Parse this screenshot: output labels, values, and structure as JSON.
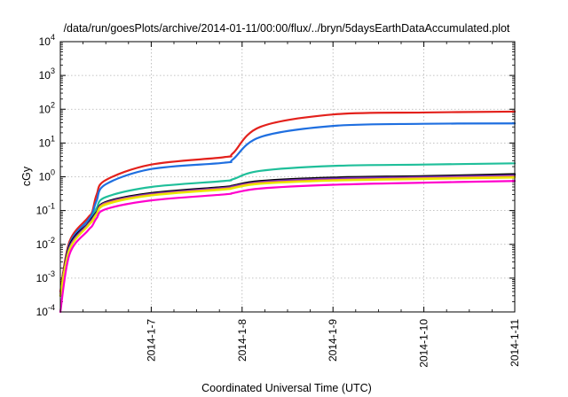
{
  "chart_data": {
    "type": "line",
    "title": "/data/run/goesPlots/archive/2014-01-11/00:00/flux/../bryn/5daysEarthDataAccumulated.plot",
    "xlabel": "Coordinated Universal Time (UTC)",
    "ylabel": "cGy",
    "x_ticks": [
      "2014-1-7",
      "2014-1-8",
      "2014-1-9",
      "2014-1-10",
      "2014-1-11"
    ],
    "xlim": [
      "2014-01-06",
      "2014-01-11"
    ],
    "y_scale": "log",
    "ylim": [
      0.0001,
      10000
    ],
    "y_ticks": [
      {
        "base": "10",
        "exp": "-4"
      },
      {
        "base": "10",
        "exp": "-3"
      },
      {
        "base": "10",
        "exp": "-2"
      },
      {
        "base": "10",
        "exp": "-1"
      },
      {
        "base": "10",
        "exp": "0"
      },
      {
        "base": "10",
        "exp": "1"
      },
      {
        "base": "10",
        "exp": "2"
      },
      {
        "base": "10",
        "exp": "3"
      },
      {
        "base": "10",
        "exp": "4"
      }
    ],
    "grid": true,
    "series": [
      {
        "color": "#e3211c",
        "x": [
          "2014-01-06 00:00",
          "2014-01-06 02:24",
          "2014-01-06 07:12",
          "2014-01-06 08:24",
          "2014-01-06 09:36",
          "2014-01-06 12:00",
          "2014-01-07 00:00",
          "2014-01-07 19:12",
          "2014-01-07 21:36",
          "2014-01-08 04:48",
          "2014-01-09 00:00",
          "2014-01-10 00:00",
          "2014-01-11 00:00"
        ],
        "y": [
          0.0004,
          0.012,
          0.06,
          0.09,
          0.3,
          0.8,
          2.3,
          3.8,
          5,
          30,
          70,
          80,
          85
        ]
      },
      {
        "color": "#1f6fe0",
        "x": [
          "2014-01-06 00:00",
          "2014-01-06 02:24",
          "2014-01-06 07:12",
          "2014-01-06 08:24",
          "2014-01-06 09:36",
          "2014-01-06 12:00",
          "2014-01-07 00:00",
          "2014-01-07 19:12",
          "2014-01-07 21:36",
          "2014-01-08 04:48",
          "2014-01-09 00:00",
          "2014-01-10 00:00",
          "2014-01-11 00:00"
        ],
        "y": [
          0.0003,
          0.01,
          0.05,
          0.08,
          0.2,
          0.6,
          1.7,
          2.6,
          3.3,
          15,
          32,
          37,
          38
        ]
      },
      {
        "color": "#1fbf9a",
        "x": [
          "2014-01-06 00:00",
          "2014-01-06 02:24",
          "2014-01-06 07:12",
          "2014-01-06 08:24",
          "2014-01-06 09:36",
          "2014-01-06 12:00",
          "2014-01-07 00:00",
          "2014-01-07 19:12",
          "2014-01-07 21:36",
          "2014-01-08 04:48",
          "2014-01-09 00:00",
          "2014-01-10 00:00",
          "2014-01-11 00:00"
        ],
        "y": [
          0.0003,
          0.008,
          0.04,
          0.06,
          0.12,
          0.25,
          0.5,
          0.75,
          0.85,
          1.5,
          2.1,
          2.3,
          2.5
        ]
      },
      {
        "color": "#000000",
        "x": [
          "2014-01-06 00:00",
          "2014-01-06 02:24",
          "2014-01-06 07:12",
          "2014-01-06 08:24",
          "2014-01-06 09:36",
          "2014-01-06 12:00",
          "2014-01-07 00:00",
          "2014-01-07 19:12",
          "2014-01-07 21:36",
          "2014-01-08 04:48",
          "2014-01-09 00:00",
          "2014-01-10 00:00",
          "2014-01-11 00:00"
        ],
        "y": [
          0.0003,
          0.009,
          0.04,
          0.06,
          0.09,
          0.18,
          0.33,
          0.5,
          0.55,
          0.75,
          0.95,
          1.05,
          1.2
        ]
      },
      {
        "color": "#7b2fbf",
        "x": [
          "2014-01-06 00:00",
          "2014-01-06 02:24",
          "2014-01-06 07:12",
          "2014-01-06 08:24",
          "2014-01-06 09:36",
          "2014-01-06 12:00",
          "2014-01-07 00:00",
          "2014-01-07 19:12",
          "2014-01-07 21:36",
          "2014-01-08 04:48",
          "2014-01-09 00:00",
          "2014-01-10 00:00",
          "2014-01-11 00:00"
        ],
        "y": [
          0.0003,
          0.008,
          0.038,
          0.055,
          0.085,
          0.17,
          0.31,
          0.47,
          0.52,
          0.7,
          0.88,
          0.98,
          1.1
        ]
      },
      {
        "color": "#ff9a1f",
        "x": [
          "2014-01-06 00:00",
          "2014-01-06 02:24",
          "2014-01-06 07:12",
          "2014-01-06 08:24",
          "2014-01-06 09:36",
          "2014-01-06 12:00",
          "2014-01-07 00:00",
          "2014-01-07 19:12",
          "2014-01-07 21:36",
          "2014-01-08 04:48",
          "2014-01-09 00:00",
          "2014-01-10 00:00",
          "2014-01-11 00:00"
        ],
        "y": [
          0.0003,
          0.007,
          0.035,
          0.05,
          0.08,
          0.16,
          0.29,
          0.44,
          0.48,
          0.65,
          0.8,
          0.9,
          1.0
        ]
      },
      {
        "color": "#e8e800",
        "x": [
          "2014-01-06 00:00",
          "2014-01-06 02:24",
          "2014-01-06 07:12",
          "2014-01-06 08:24",
          "2014-01-06 09:36",
          "2014-01-06 12:00",
          "2014-01-07 00:00",
          "2014-01-07 19:12",
          "2014-01-07 21:36",
          "2014-01-08 04:48",
          "2014-01-09 00:00",
          "2014-01-10 00:00",
          "2014-01-11 00:00"
        ],
        "y": [
          0.0003,
          0.007,
          0.034,
          0.048,
          0.078,
          0.15,
          0.28,
          0.42,
          0.46,
          0.62,
          0.77,
          0.86,
          0.95
        ]
      },
      {
        "color": "#ff00cc",
        "x": [
          "2014-01-06 00:00",
          "2014-01-06 02:24",
          "2014-01-06 07:12",
          "2014-01-06 08:24",
          "2014-01-06 09:36",
          "2014-01-06 12:00",
          "2014-01-07 00:00",
          "2014-01-07 19:12",
          "2014-01-07 21:36",
          "2014-01-08 04:48",
          "2014-01-09 00:00",
          "2014-01-10 00:00",
          "2014-01-11 00:00"
        ],
        "y": [
          0.0001,
          0.005,
          0.025,
          0.035,
          0.06,
          0.11,
          0.2,
          0.3,
          0.33,
          0.45,
          0.58,
          0.67,
          0.75
        ]
      }
    ]
  }
}
